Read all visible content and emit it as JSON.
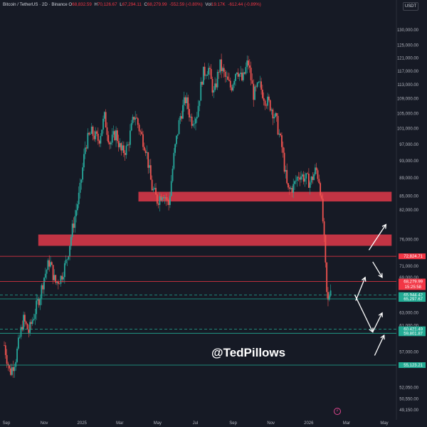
{
  "header": {
    "symbol": "Bitcoin / TetherUS · 2D · Binance",
    "open_label": "O",
    "open": "68,832.59",
    "high_label": "H",
    "high": "70,126.67",
    "low_label": "L",
    "low": "67,294.11",
    "close_label": "C",
    "close": "68,279.99",
    "change": "-552.59 (-0.80%)",
    "vol_label": "Vol",
    "vol": "19.17K",
    "vol_change": "-612.44 (-0.89%)"
  },
  "currency_button": "USDT",
  "watermark": "@TedPillows",
  "logo_icon": "tradingview-logo-icon",
  "colors": {
    "background": "#161a25",
    "up": "#26a69a",
    "down": "#ef5350",
    "zone": "#e03a4a",
    "support": "#22ab94",
    "resistance": "#f23645"
  },
  "chart_data": {
    "type": "candlestick",
    "y_axis_scale": "log",
    "ylim": [
      47500,
      142000
    ],
    "y_ticks": [
      130000,
      125000,
      121000,
      117000,
      113000,
      109000,
      105000,
      101000,
      97000,
      93000,
      89000,
      85000,
      82000,
      76000,
      71000,
      69000,
      63000,
      61000,
      57000,
      55000,
      52050,
      50550,
      49150
    ],
    "y_tick_labels": [
      "130,000.00",
      "125,000.00",
      "121,000.00",
      "117,000.00",
      "113,000.00",
      "109,000.00",
      "105,000.00",
      "101,000.00",
      "97,000.00",
      "93,000.00",
      "89,000.00",
      "85,000.00",
      "82,000.00",
      "76,000.00",
      "71,000.00",
      "69,000.00",
      "63,000.00",
      "61,000.00",
      "57,000.00",
      "55,000.00",
      "52,050.00",
      "50,550.00",
      "49,150.00"
    ],
    "x_ticks": [
      "Sep",
      "Nov",
      "2025",
      "Mar",
      "May",
      "Jul",
      "Sep",
      "Nov",
      "2026",
      "Mar",
      "May"
    ],
    "x_tick_positions": [
      0.0,
      2.0,
      4.0,
      6.0,
      8.0,
      10.0,
      12.0,
      14.0,
      16.0,
      18.0,
      20.0
    ],
    "price_path_months": [
      0,
      0.3,
      0.6,
      1.0,
      1.3,
      1.6,
      1.9,
      2.1,
      2.4,
      2.7,
      3.0,
      3.3,
      3.6,
      4.0,
      4.3,
      4.6,
      5.0,
      5.3,
      5.6,
      5.9,
      6.2,
      6.5,
      6.9,
      7.2,
      7.5,
      7.8,
      8.1,
      8.4,
      8.7,
      9.0,
      9.3,
      9.6,
      9.9,
      10.2,
      10.5,
      10.8,
      11.1,
      11.4,
      11.7,
      12.0,
      12.3,
      12.6,
      12.9,
      13.2,
      13.5,
      13.8,
      14.1,
      14.4,
      14.7,
      15.0,
      15.3,
      15.6,
      15.9,
      16.2,
      16.5,
      16.7,
      16.9,
      17.1,
      17.3
    ],
    "price_path_values": [
      58000,
      54000,
      56000,
      62000,
      60000,
      63000,
      66000,
      69000,
      72000,
      68000,
      69000,
      72000,
      78000,
      86000,
      97000,
      100000,
      98000,
      104000,
      97000,
      100000,
      95000,
      96000,
      105000,
      100000,
      96000,
      87000,
      84000,
      86000,
      83000,
      95000,
      104000,
      109000,
      103000,
      105000,
      116000,
      118000,
      110000,
      119000,
      115000,
      112000,
      118000,
      114000,
      120000,
      110000,
      113000,
      109000,
      107000,
      103000,
      96000,
      86000,
      87000,
      90000,
      89000,
      88000,
      91000,
      88000,
      78000,
      64000,
      68280
    ],
    "resistance_zones": [
      {
        "label": "",
        "from": 83800,
        "to": 85900,
        "x_start": 7.1,
        "x_end": 20.5
      },
      {
        "label": "",
        "from": 74800,
        "to": 77000,
        "x_start": 1.8,
        "x_end": 20.5
      }
    ],
    "horizontal_levels": [
      {
        "value": 72824.71,
        "label": "72,824.71",
        "style": "solid",
        "color": "#f23645"
      },
      {
        "value": 68279.99,
        "label": "68,279.99",
        "style": "solid",
        "color": "#f23645",
        "countdown": "15:25:58"
      },
      {
        "value": 65944.42,
        "label": "65,944.42",
        "style": "dashed",
        "color": "#22ab94"
      },
      {
        "value": 65297.67,
        "label": "65,297.67",
        "style": "solid",
        "color": "#22ab94"
      },
      {
        "value": 60421.49,
        "label": "60,421.49",
        "style": "dashed",
        "color": "#22ab94"
      },
      {
        "value": 59801.87,
        "label": "59,801.87",
        "style": "solid",
        "color": "#22ab94"
      },
      {
        "value": 55123.21,
        "label": "55,123.21",
        "style": "solid",
        "color": "#22ab94"
      }
    ],
    "projection_arrows": [
      {
        "from": [
          18.6,
          65000
        ],
        "to": [
          19.1,
          69000
        ]
      },
      {
        "from": [
          18.55,
          66000
        ],
        "to": [
          19.5,
          60000
        ]
      },
      {
        "from": [
          19.5,
          60000
        ],
        "to": [
          20.0,
          63000
        ]
      },
      {
        "from": [
          19.6,
          56500
        ],
        "to": [
          20.1,
          59500
        ]
      },
      {
        "from": [
          19.5,
          71800
        ],
        "to": [
          20.0,
          69000
        ]
      },
      {
        "from": [
          19.3,
          74000
        ],
        "to": [
          20.2,
          79000
        ]
      }
    ]
  }
}
